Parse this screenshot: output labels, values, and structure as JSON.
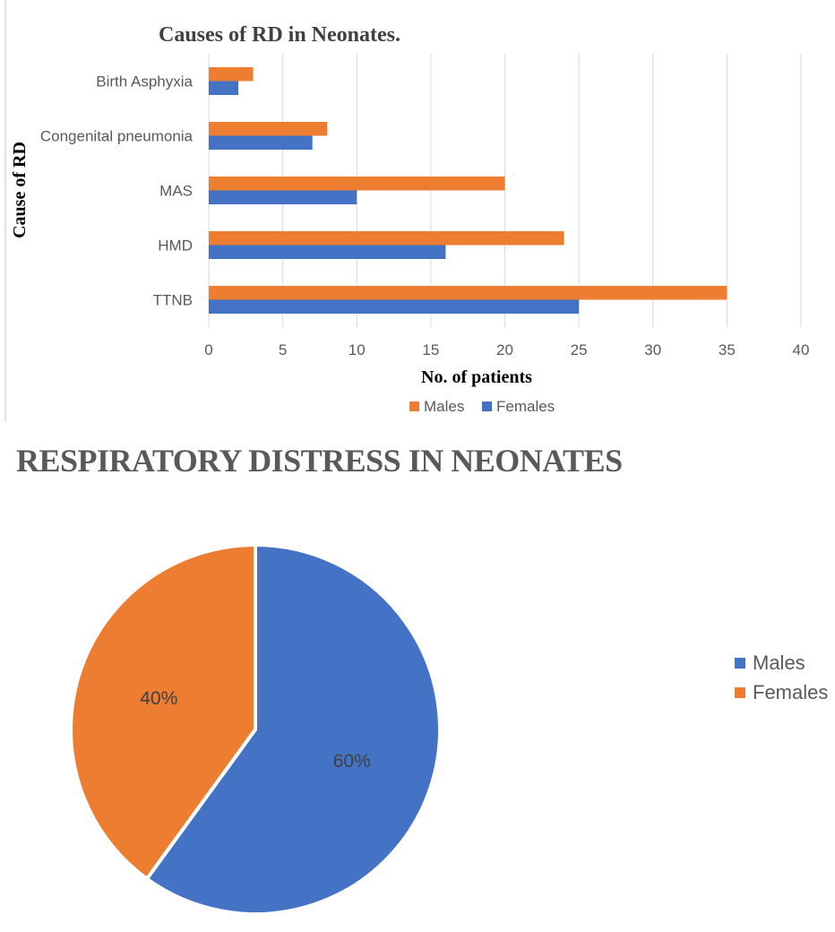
{
  "chart_data": [
    {
      "type": "bar",
      "orientation": "horizontal",
      "title": "Causes of RD in Neonates.",
      "xlabel": "No. of patients",
      "ylabel": "Cause of RD",
      "categories": [
        "Birth Asphyxia",
        "Congenital pneumonia",
        "MAS",
        "HMD",
        "TTNB"
      ],
      "series": [
        {
          "name": "Males",
          "values": [
            3,
            8,
            20,
            24,
            35
          ],
          "color": "#ED7D31"
        },
        {
          "name": "Females",
          "values": [
            2,
            7,
            10,
            16,
            25
          ],
          "color": "#4472C4"
        }
      ],
      "xlim": [
        0,
        40
      ],
      "xticks": [
        0,
        5,
        10,
        15,
        20,
        25,
        30,
        35,
        40
      ],
      "grid": true,
      "legend_position": "bottom"
    },
    {
      "type": "pie",
      "title": "RESPIRATORY DISTRESS IN NEONATES",
      "slices": [
        {
          "name": "Males",
          "value": 60,
          "label": "60%",
          "color": "#4472C4"
        },
        {
          "name": "Females",
          "value": 40,
          "label": "40%",
          "color": "#ED7D31"
        }
      ],
      "legend_position": "right"
    }
  ]
}
